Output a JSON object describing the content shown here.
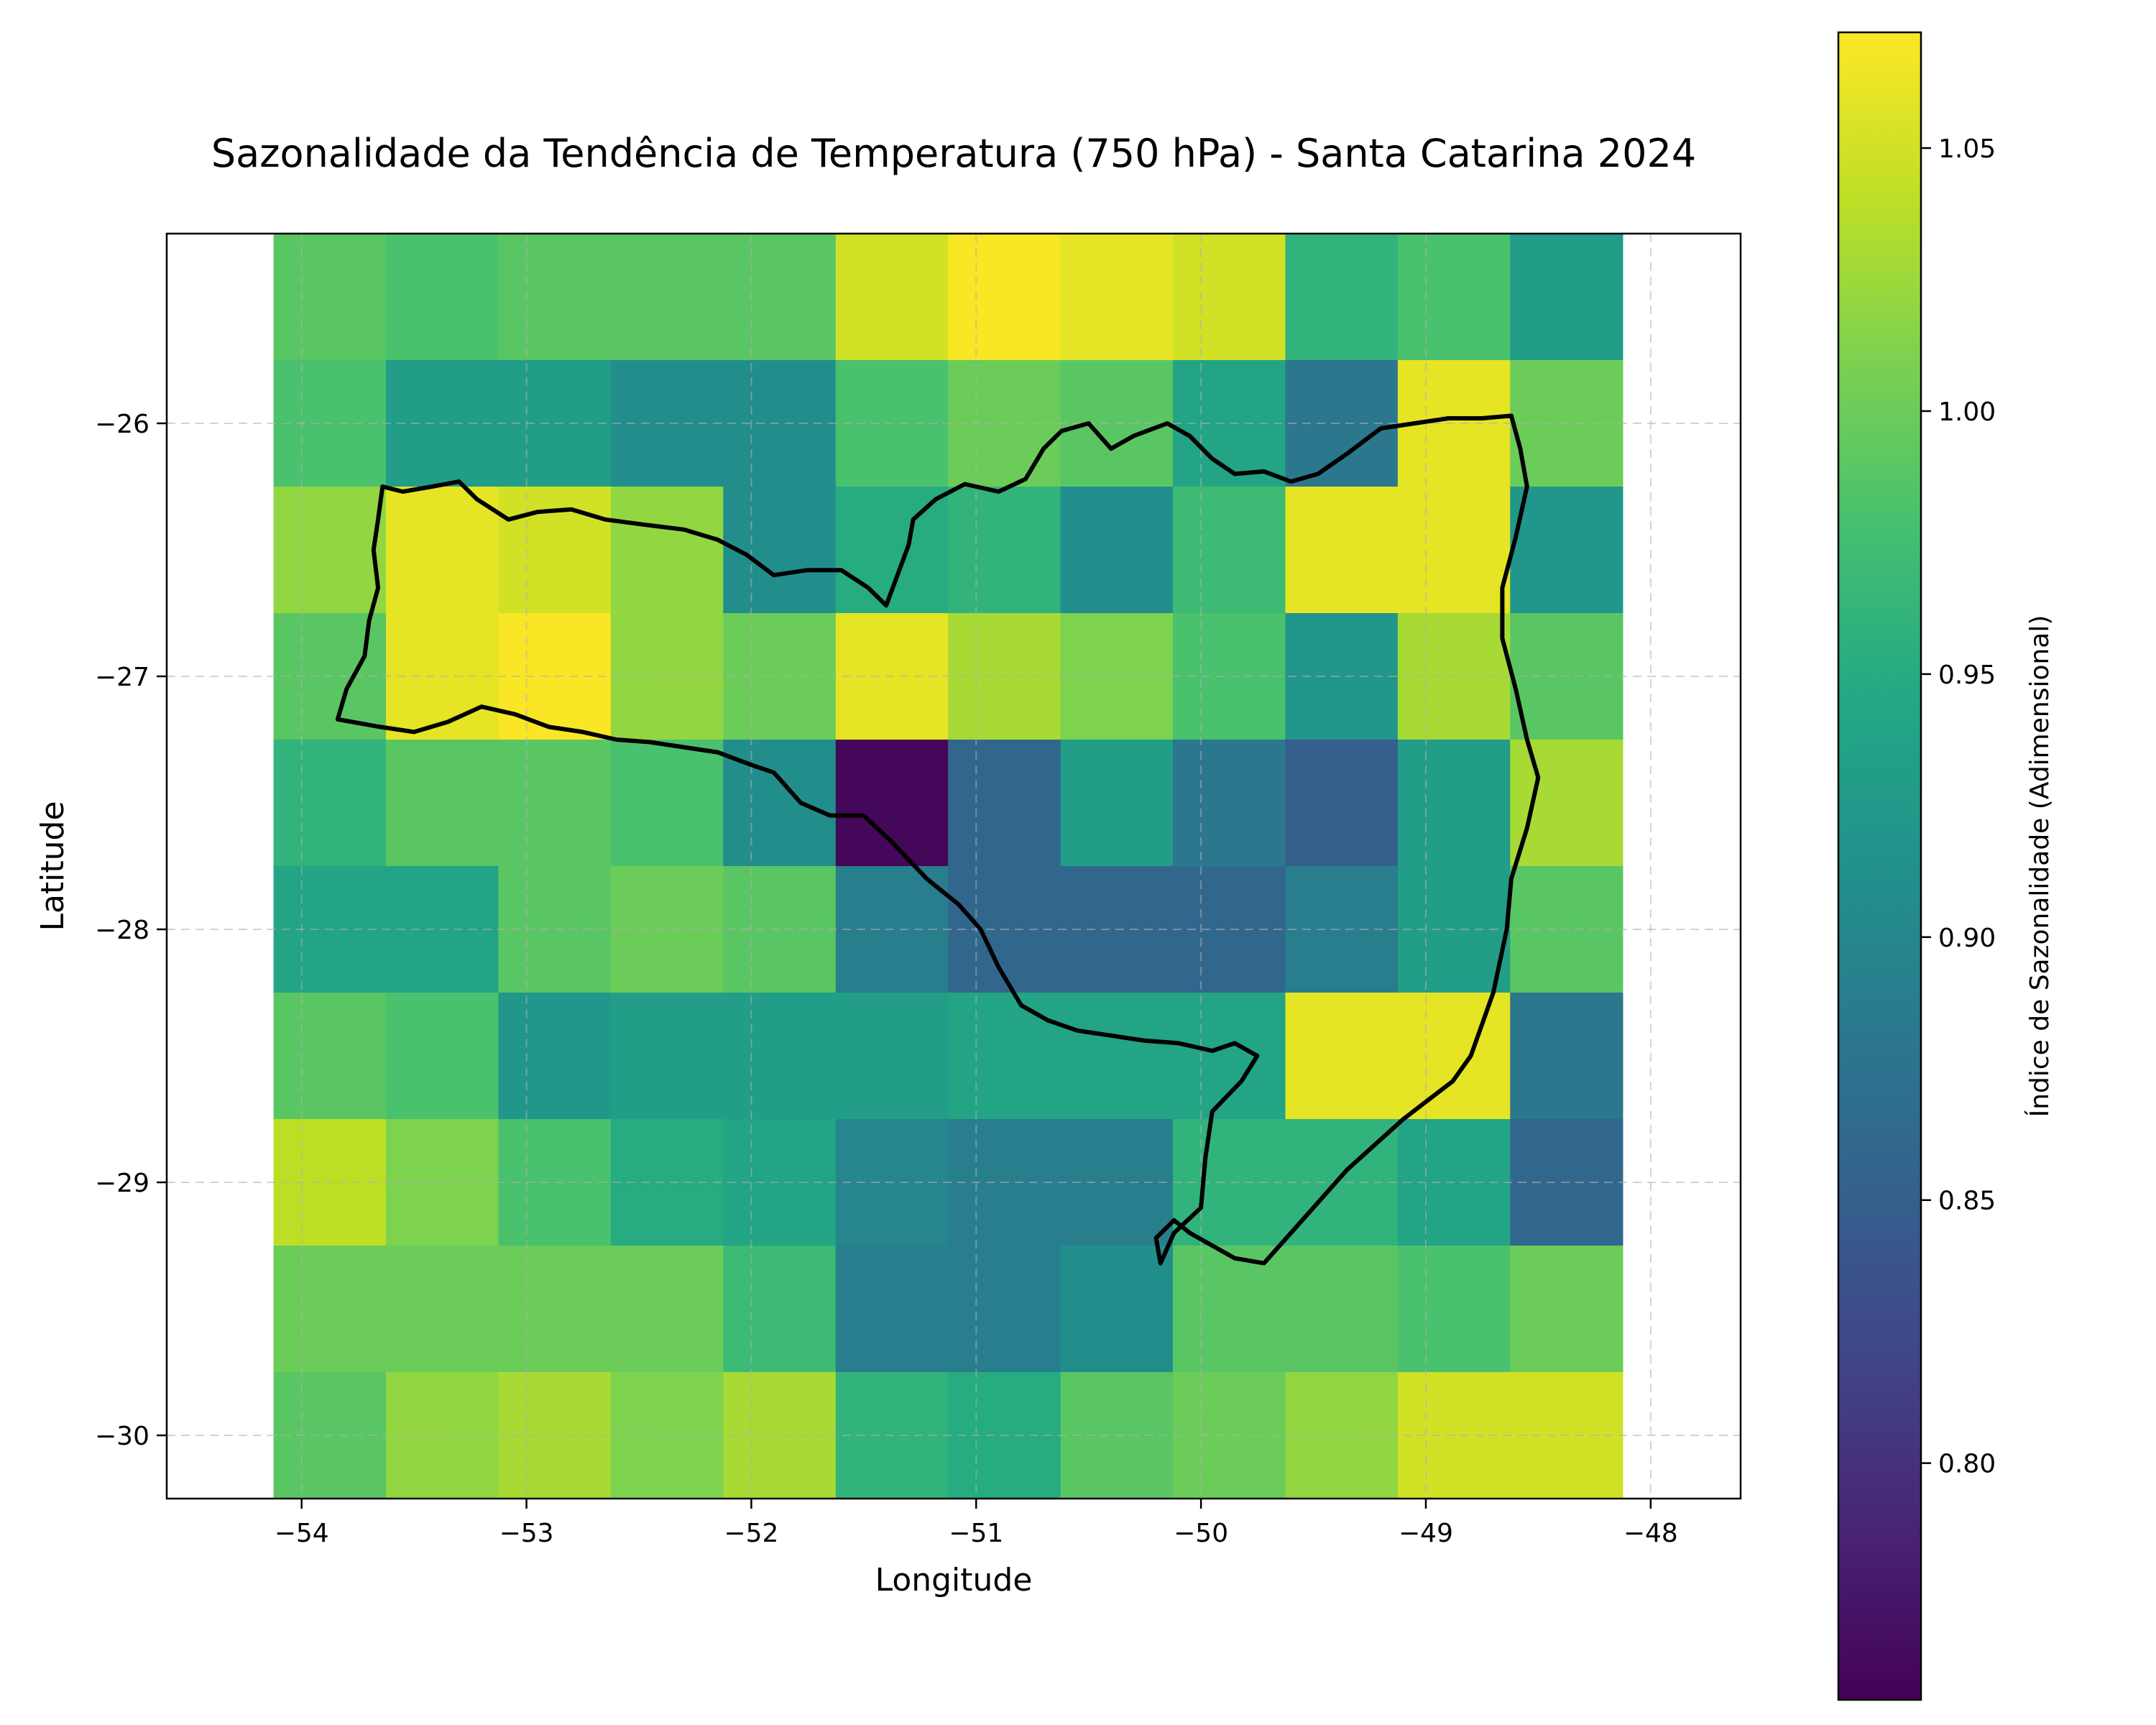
{
  "chart_data": {
    "type": "heatmap",
    "title": "Sazonalidade da Tendência de Temperatura (750 hPa) - Santa Catarina 2024",
    "xlabel": "Longitude",
    "ylabel": "Latitude",
    "xlim": [
      -54.6,
      -47.6
    ],
    "ylim": [
      -30.25,
      -25.25
    ],
    "x_ticks": [
      -54,
      -53,
      -52,
      -51,
      -50,
      -49,
      -48
    ],
    "y_ticks": [
      -30,
      -29,
      -28,
      -27,
      -26
    ],
    "x_tick_labels": [
      "−54",
      "−53",
      "−52",
      "−51",
      "−50",
      "−49",
      "−48"
    ],
    "y_tick_labels": [
      "−30",
      "−29",
      "−28",
      "−27",
      "−26"
    ],
    "grid": true,
    "cell_lon_centers": [
      -53.875,
      -53.375,
      -52.875,
      -52.375,
      -51.875,
      -51.375,
      -50.875,
      -50.375,
      -49.875,
      -49.375,
      -48.875,
      -48.375
    ],
    "cell_lat_centers": [
      -25.5,
      -26.0,
      -26.5,
      -27.0,
      -27.5,
      -28.0,
      -28.5,
      -29.0,
      -29.5,
      -30.0
    ],
    "cell_size_deg": [
      0.5,
      0.5
    ],
    "values": [
      [
        0.99,
        0.98,
        0.99,
        0.99,
        0.99,
        1.05,
        1.07,
        1.06,
        1.05,
        0.96,
        0.98,
        0.93
      ],
      [
        0.98,
        0.93,
        0.93,
        0.91,
        0.91,
        0.98,
        1.0,
        0.99,
        0.94,
        0.88,
        1.06,
        1.0
      ],
      [
        1.02,
        1.06,
        1.05,
        1.02,
        0.91,
        0.95,
        0.96,
        0.91,
        0.97,
        1.06,
        1.06,
        0.92
      ],
      [
        0.99,
        1.06,
        1.07,
        1.02,
        1.0,
        1.06,
        1.03,
        1.01,
        0.98,
        0.92,
        1.03,
        0.99
      ],
      [
        0.96,
        0.99,
        0.99,
        0.98,
        0.91,
        0.76,
        0.86,
        0.93,
        0.88,
        0.85,
        0.93,
        1.03
      ],
      [
        0.94,
        0.94,
        0.99,
        1.0,
        0.99,
        0.89,
        0.86,
        0.86,
        0.86,
        0.89,
        0.93,
        0.99
      ],
      [
        0.99,
        0.98,
        0.92,
        0.93,
        0.93,
        0.93,
        0.94,
        0.94,
        0.94,
        1.06,
        1.06,
        0.88
      ],
      [
        1.04,
        1.01,
        0.98,
        0.95,
        0.94,
        0.9,
        0.89,
        0.89,
        0.96,
        0.96,
        0.94,
        0.86
      ],
      [
        1.0,
        1.0,
        1.0,
        1.0,
        0.97,
        0.89,
        0.89,
        0.91,
        0.99,
        0.99,
        0.98,
        1.0
      ],
      [
        0.99,
        1.02,
        1.03,
        1.01,
        1.03,
        0.96,
        0.95,
        0.99,
        1.0,
        1.02,
        1.05,
        1.05
      ]
    ],
    "colormap": "viridis",
    "colorbar": {
      "label": "Índice de Sazonalidade (Adimensional)",
      "range": [
        0.755,
        1.072
      ],
      "ticks": [
        0.8,
        0.85,
        0.9,
        0.95,
        1.0,
        1.05
      ],
      "tick_labels": [
        "0.80",
        "0.85",
        "0.90",
        "0.95",
        "1.00",
        "1.05"
      ]
    },
    "outline": {
      "name": "Santa Catarina state boundary",
      "color": "#000000",
      "coords": [
        [
          -53.84,
          -27.17
        ],
        [
          -53.8,
          -27.05
        ],
        [
          -53.72,
          -26.92
        ],
        [
          -53.7,
          -26.78
        ],
        [
          -53.66,
          -26.65
        ],
        [
          -53.68,
          -26.5
        ],
        [
          -53.66,
          -26.38
        ],
        [
          -53.64,
          -26.25
        ],
        [
          -53.55,
          -26.27
        ],
        [
          -53.42,
          -26.25
        ],
        [
          -53.3,
          -26.23
        ],
        [
          -53.22,
          -26.3
        ],
        [
          -53.08,
          -26.38
        ],
        [
          -52.95,
          -26.35
        ],
        [
          -52.8,
          -26.34
        ],
        [
          -52.65,
          -26.38
        ],
        [
          -52.48,
          -26.4
        ],
        [
          -52.3,
          -26.42
        ],
        [
          -52.15,
          -26.46
        ],
        [
          -52.02,
          -26.52
        ],
        [
          -51.9,
          -26.6
        ],
        [
          -51.75,
          -26.58
        ],
        [
          -51.6,
          -26.58
        ],
        [
          -51.48,
          -26.65
        ],
        [
          -51.4,
          -26.72
        ],
        [
          -51.35,
          -26.6
        ],
        [
          -51.3,
          -26.48
        ],
        [
          -51.28,
          -26.38
        ],
        [
          -51.18,
          -26.3
        ],
        [
          -51.05,
          -26.24
        ],
        [
          -50.9,
          -26.27
        ],
        [
          -50.78,
          -26.22
        ],
        [
          -50.7,
          -26.1
        ],
        [
          -50.62,
          -26.03
        ],
        [
          -50.5,
          -26.0
        ],
        [
          -50.4,
          -26.1
        ],
        [
          -50.3,
          -26.05
        ],
        [
          -50.15,
          -26.0
        ],
        [
          -50.05,
          -26.05
        ],
        [
          -49.95,
          -26.14
        ],
        [
          -49.85,
          -26.2
        ],
        [
          -49.72,
          -26.19
        ],
        [
          -49.6,
          -26.23
        ],
        [
          -49.48,
          -26.2
        ],
        [
          -49.35,
          -26.12
        ],
        [
          -49.2,
          -26.02
        ],
        [
          -49.05,
          -26.0
        ],
        [
          -48.9,
          -25.98
        ],
        [
          -48.75,
          -25.98
        ],
        [
          -48.62,
          -25.97
        ],
        [
          -48.58,
          -26.1
        ],
        [
          -48.55,
          -26.25
        ],
        [
          -48.6,
          -26.45
        ],
        [
          -48.66,
          -26.65
        ],
        [
          -48.66,
          -26.85
        ],
        [
          -48.6,
          -27.05
        ],
        [
          -48.55,
          -27.25
        ],
        [
          -48.5,
          -27.4
        ],
        [
          -48.55,
          -27.6
        ],
        [
          -48.62,
          -27.8
        ],
        [
          -48.64,
          -28.0
        ],
        [
          -48.7,
          -28.25
        ],
        [
          -48.8,
          -28.5
        ],
        [
          -48.88,
          -28.6
        ],
        [
          -49.1,
          -28.75
        ],
        [
          -49.35,
          -28.95
        ],
        [
          -49.6,
          -29.2
        ],
        [
          -49.72,
          -29.32
        ],
        [
          -49.85,
          -29.3
        ],
        [
          -49.95,
          -29.25
        ],
        [
          -50.05,
          -29.2
        ],
        [
          -50.12,
          -29.15
        ],
        [
          -50.2,
          -29.22
        ],
        [
          -50.18,
          -29.32
        ],
        [
          -50.12,
          -29.2
        ],
        [
          -50.0,
          -29.1
        ],
        [
          -49.98,
          -28.9
        ],
        [
          -49.95,
          -28.72
        ],
        [
          -49.82,
          -28.6
        ],
        [
          -49.75,
          -28.5
        ],
        [
          -49.85,
          -28.45
        ],
        [
          -49.95,
          -28.48
        ],
        [
          -50.1,
          -28.45
        ],
        [
          -50.25,
          -28.44
        ],
        [
          -50.4,
          -28.42
        ],
        [
          -50.55,
          -28.4
        ],
        [
          -50.68,
          -28.36
        ],
        [
          -50.8,
          -28.3
        ],
        [
          -50.9,
          -28.15
        ],
        [
          -50.98,
          -28.0
        ],
        [
          -51.08,
          -27.9
        ],
        [
          -51.22,
          -27.8
        ],
        [
          -51.38,
          -27.65
        ],
        [
          -51.5,
          -27.55
        ],
        [
          -51.65,
          -27.55
        ],
        [
          -51.78,
          -27.5
        ],
        [
          -51.9,
          -27.38
        ],
        [
          -52.0,
          -27.35
        ],
        [
          -52.15,
          -27.3
        ],
        [
          -52.3,
          -27.28
        ],
        [
          -52.45,
          -27.26
        ],
        [
          -52.6,
          -27.25
        ],
        [
          -52.75,
          -27.22
        ],
        [
          -52.9,
          -27.2
        ],
        [
          -53.05,
          -27.15
        ],
        [
          -53.2,
          -27.12
        ],
        [
          -53.35,
          -27.18
        ],
        [
          -53.5,
          -27.22
        ],
        [
          -53.65,
          -27.2
        ],
        [
          -53.84,
          -27.17
        ]
      ]
    }
  }
}
